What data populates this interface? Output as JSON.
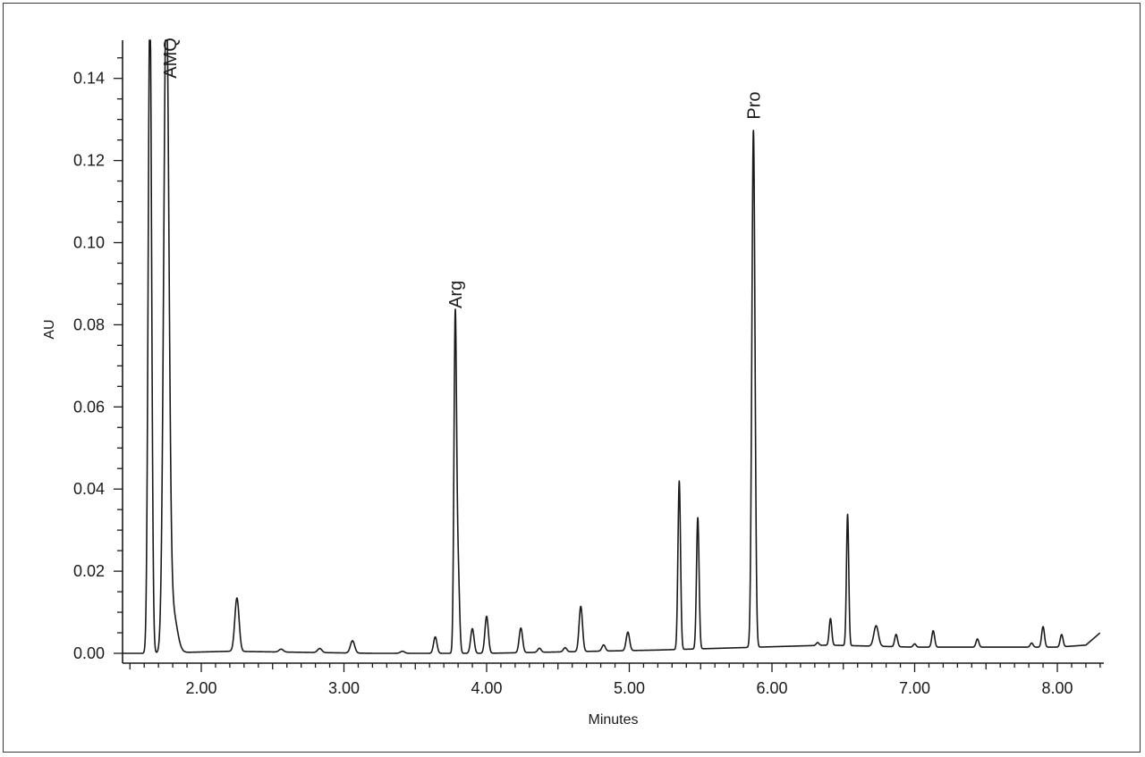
{
  "chart_data": {
    "type": "line",
    "title": "",
    "xlabel": "Minutes",
    "ylabel": "AU",
    "xlim": [
      1.45,
      8.35
    ],
    "ylim": [
      0.0,
      0.15
    ],
    "x_ticks": [
      2.0,
      3.0,
      4.0,
      5.0,
      6.0,
      7.0,
      8.0
    ],
    "x_tick_labels": [
      "2.00",
      "3.00",
      "4.00",
      "5.00",
      "6.00",
      "7.00",
      "8.00"
    ],
    "y_ticks": [
      0.0,
      0.02,
      0.04,
      0.06,
      0.08,
      0.1,
      0.12,
      0.14
    ],
    "y_tick_labels": [
      "0.00",
      "0.02",
      "0.04",
      "0.06",
      "0.08",
      "0.10",
      "0.12",
      "0.14"
    ],
    "grid": false,
    "legend": "none",
    "line_color": "#1a1a1a",
    "baseline": [
      [
        1.45,
        0.0
      ],
      [
        1.62,
        0.0
      ],
      [
        2.2,
        0.0005
      ],
      [
        3.2,
        0.0
      ],
      [
        4.0,
        0.0
      ],
      [
        5.2,
        0.0008
      ],
      [
        5.9,
        0.0015
      ],
      [
        6.4,
        0.002
      ],
      [
        7.0,
        0.0015
      ],
      [
        7.5,
        0.0015
      ],
      [
        8.0,
        0.0015
      ],
      [
        8.2,
        0.002
      ],
      [
        8.3,
        0.005
      ]
    ],
    "peaks": [
      {
        "rt": 1.64,
        "height": 0.16,
        "width": 0.012
      },
      {
        "rt": 1.755,
        "height": 0.16,
        "width": 0.018
      },
      {
        "rt": 1.8,
        "height": 0.01,
        "width": 0.03
      },
      {
        "rt": 2.25,
        "height": 0.013,
        "width": 0.015
      },
      {
        "rt": 2.56,
        "height": 0.0007,
        "width": 0.015
      },
      {
        "rt": 2.83,
        "height": 0.001,
        "width": 0.015
      },
      {
        "rt": 3.06,
        "height": 0.003,
        "width": 0.015
      },
      {
        "rt": 3.41,
        "height": 0.0005,
        "width": 0.015
      },
      {
        "rt": 3.64,
        "height": 0.004,
        "width": 0.012
      },
      {
        "rt": 3.78,
        "height": 0.081,
        "width": 0.009
      },
      {
        "rt": 3.8,
        "height": 0.02,
        "width": 0.01
      },
      {
        "rt": 3.9,
        "height": 0.006,
        "width": 0.012
      },
      {
        "rt": 4.0,
        "height": 0.009,
        "width": 0.012
      },
      {
        "rt": 4.24,
        "height": 0.006,
        "width": 0.012
      },
      {
        "rt": 4.37,
        "height": 0.001,
        "width": 0.012
      },
      {
        "rt": 4.55,
        "height": 0.001,
        "width": 0.012
      },
      {
        "rt": 4.66,
        "height": 0.011,
        "width": 0.012
      },
      {
        "rt": 4.82,
        "height": 0.0015,
        "width": 0.012
      },
      {
        "rt": 4.99,
        "height": 0.0045,
        "width": 0.012
      },
      {
        "rt": 5.35,
        "height": 0.041,
        "width": 0.009
      },
      {
        "rt": 5.48,
        "height": 0.032,
        "width": 0.009
      },
      {
        "rt": 5.87,
        "height": 0.126,
        "width": 0.011
      },
      {
        "rt": 6.32,
        "height": 0.0007,
        "width": 0.01
      },
      {
        "rt": 6.41,
        "height": 0.0065,
        "width": 0.009
      },
      {
        "rt": 6.53,
        "height": 0.032,
        "width": 0.008
      },
      {
        "rt": 6.73,
        "height": 0.005,
        "width": 0.016
      },
      {
        "rt": 6.87,
        "height": 0.003,
        "width": 0.01
      },
      {
        "rt": 7.0,
        "height": 0.0008,
        "width": 0.01
      },
      {
        "rt": 7.13,
        "height": 0.004,
        "width": 0.01
      },
      {
        "rt": 7.44,
        "height": 0.002,
        "width": 0.01
      },
      {
        "rt": 7.82,
        "height": 0.001,
        "width": 0.01
      },
      {
        "rt": 7.9,
        "height": 0.005,
        "width": 0.01
      },
      {
        "rt": 8.03,
        "height": 0.003,
        "width": 0.01
      }
    ],
    "annotations": [
      {
        "text": "AMQ",
        "x": 1.78,
        "y": 0.14
      },
      {
        "text": "Arg",
        "x": 3.78,
        "y": 0.084
      },
      {
        "text": "Pro",
        "x": 5.87,
        "y": 0.13
      }
    ]
  }
}
